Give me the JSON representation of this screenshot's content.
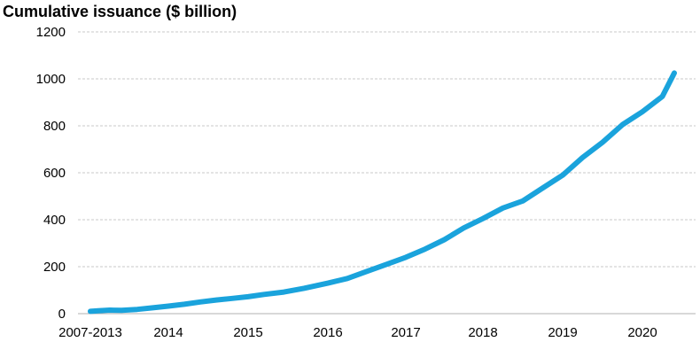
{
  "chart_data": {
    "type": "line",
    "title": "Cumulative issuance ($ billion)",
    "xlabel": "",
    "ylabel": "",
    "ylim": [
      0,
      1200
    ],
    "yticks": [
      0,
      200,
      400,
      600,
      800,
      1000,
      1200
    ],
    "grid": true,
    "legend": "none",
    "x_tick_labels": [
      "2007-2013",
      "2014",
      "2015",
      "2016",
      "2017",
      "2018",
      "2019",
      "2020"
    ],
    "x_tick_positions": [
      0,
      1,
      2,
      3,
      4,
      5,
      6,
      7
    ],
    "line_color": "#1aa3dc",
    "grid_color": "#c8c8c8",
    "series": [
      {
        "x": [
          0,
          0.1,
          0.25,
          0.4,
          0.6,
          0.8,
          1.0,
          1.2,
          1.4,
          1.6,
          1.8,
          2.0,
          2.2,
          2.45,
          2.7,
          3.0,
          3.25,
          3.5,
          3.75,
          4.0,
          4.25,
          4.5,
          4.75,
          5.0,
          5.25,
          5.5,
          5.75,
          6.0,
          6.25,
          6.5,
          6.75,
          7.0,
          7.25,
          7.4
        ],
        "y": [
          10,
          12,
          15,
          14,
          18,
          25,
          32,
          40,
          50,
          58,
          65,
          72,
          82,
          92,
          108,
          130,
          150,
          180,
          210,
          240,
          275,
          315,
          365,
          405,
          450,
          480,
          535,
          590,
          665,
          730,
          805,
          860,
          925,
          1025
        ]
      }
    ]
  }
}
